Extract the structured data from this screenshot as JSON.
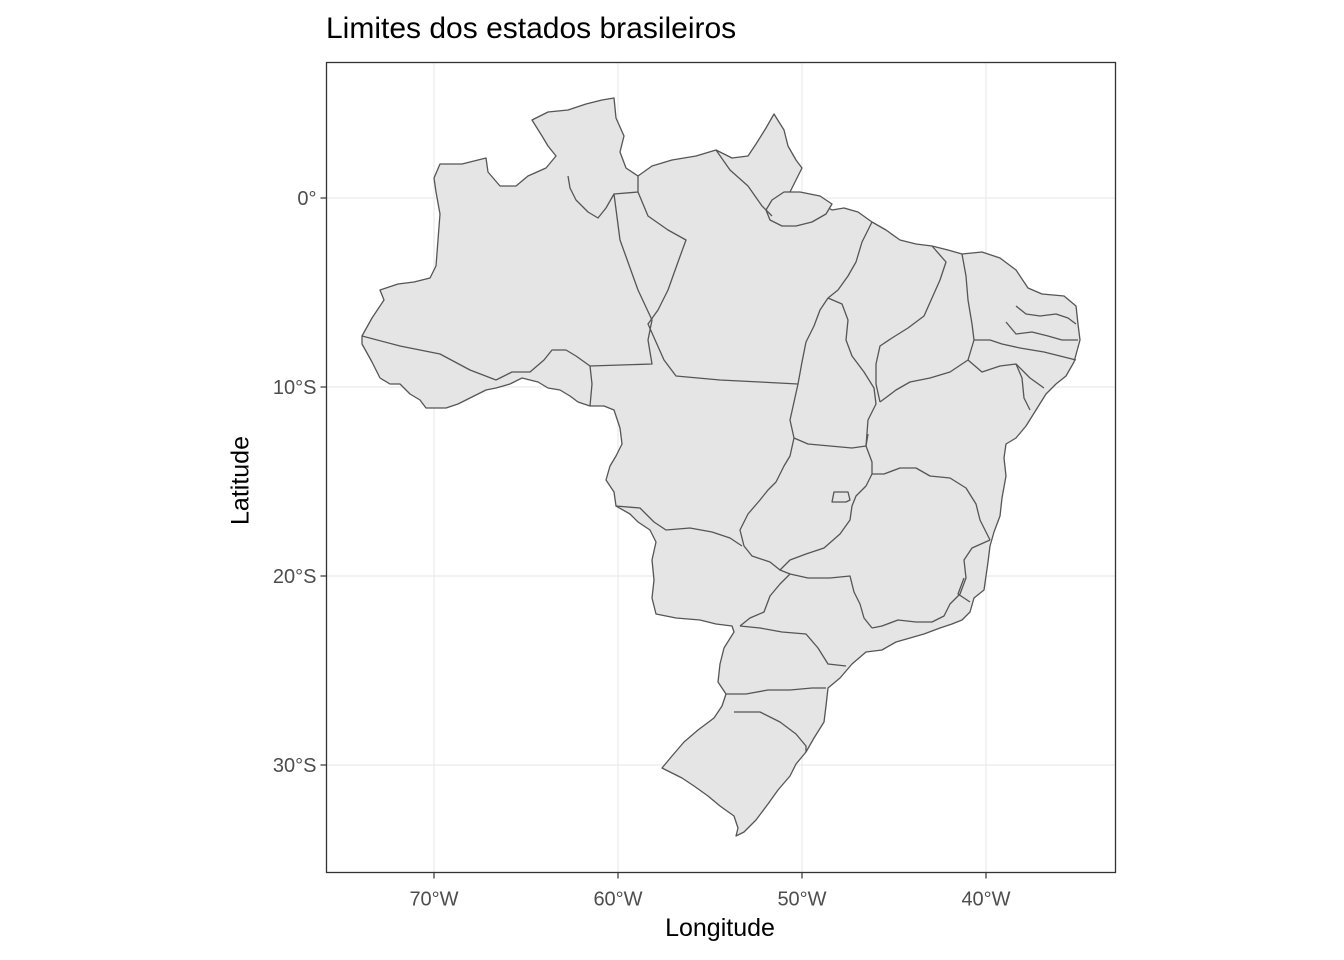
{
  "chart_data": {
    "type": "map",
    "title": "Limites dos estados brasileiros",
    "xlabel": "Longitude",
    "ylabel": "Latitude",
    "xlim": [
      -76,
      -33
    ],
    "ylim": [
      -35,
      7
    ],
    "x_ticks": [
      {
        "value": -70,
        "label": "70°W"
      },
      {
        "value": -60,
        "label": "60°W"
      },
      {
        "value": -50,
        "label": "50°W"
      },
      {
        "value": -40,
        "label": "40°W"
      }
    ],
    "y_ticks": [
      {
        "value": 0,
        "label": "0°"
      },
      {
        "value": -10,
        "label": "10°S"
      },
      {
        "value": -20,
        "label": "20°S"
      },
      {
        "value": -30,
        "label": "30°S"
      }
    ],
    "grid": true,
    "fill_color": "#e5e5e5",
    "line_color": "#555555",
    "grid_color": "#ebebeb",
    "panel_border_color": "#333333",
    "feature": "Brazil state boundaries"
  }
}
